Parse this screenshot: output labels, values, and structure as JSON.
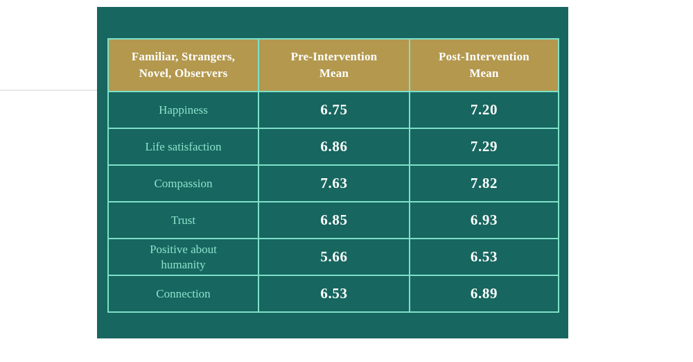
{
  "page": {
    "background_color": "#ffffff"
  },
  "panel": {
    "background_color": "#17665f",
    "border_color": "#7fe0ca",
    "header_background_color": "#b3984e"
  },
  "table": {
    "header": {
      "columns": [
        "Familiar, Strangers,\nNovel, Observers",
        "Pre-Intervention\nMean",
        "Post-Intervention\nMean"
      ]
    },
    "rows": [
      {
        "label": "Happiness",
        "pre": "6.75",
        "post": "7.20"
      },
      {
        "label": "Life satisfaction",
        "pre": "6.86",
        "post": "7.29"
      },
      {
        "label": "Compassion",
        "pre": "7.63",
        "post": "7.82"
      },
      {
        "label": "Trust",
        "pre": "6.85",
        "post": "6.93"
      },
      {
        "label": "Positive about\nhumanity",
        "pre": "5.66",
        "post": "6.53"
      },
      {
        "label": "Connection",
        "pre": "6.53",
        "post": "6.89"
      }
    ]
  },
  "chart_data": {
    "type": "table",
    "title": "",
    "columns": [
      "Familiar, Strangers, Novel, Observers",
      "Pre-Intervention Mean",
      "Post-Intervention Mean"
    ],
    "rows": [
      [
        "Happiness",
        6.75,
        7.2
      ],
      [
        "Life satisfaction",
        6.86,
        7.29
      ],
      [
        "Compassion",
        7.63,
        7.82
      ],
      [
        "Trust",
        6.85,
        6.93
      ],
      [
        "Positive about humanity",
        5.66,
        6.53
      ],
      [
        "Connection",
        6.53,
        6.89
      ]
    ],
    "series": [
      {
        "name": "Pre-Intervention Mean",
        "values": [
          6.75,
          6.86,
          7.63,
          6.85,
          5.66,
          6.53
        ]
      },
      {
        "name": "Post-Intervention Mean",
        "values": [
          7.2,
          7.29,
          7.82,
          6.93,
          6.53,
          6.89
        ]
      }
    ],
    "categories": [
      "Happiness",
      "Life satisfaction",
      "Compassion",
      "Trust",
      "Positive about humanity",
      "Connection"
    ]
  }
}
